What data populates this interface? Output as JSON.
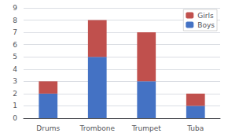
{
  "chart_data": {
    "type": "bar",
    "categories": [
      "Drums",
      "Trombone",
      "Trumpet",
      "Tuba"
    ],
    "series": [
      {
        "name": "Boys",
        "color": "#4472C4",
        "values": [
          2,
          5,
          3,
          1
        ]
      },
      {
        "name": "Girls",
        "color": "#C0504D",
        "values": [
          1,
          3,
          4,
          1
        ]
      }
    ],
    "stacked": true,
    "ylim": [
      0,
      9
    ],
    "yticks": [
      0,
      1,
      2,
      3,
      4,
      5,
      6,
      7,
      8,
      9
    ],
    "grid": true,
    "legend": "upper right"
  }
}
